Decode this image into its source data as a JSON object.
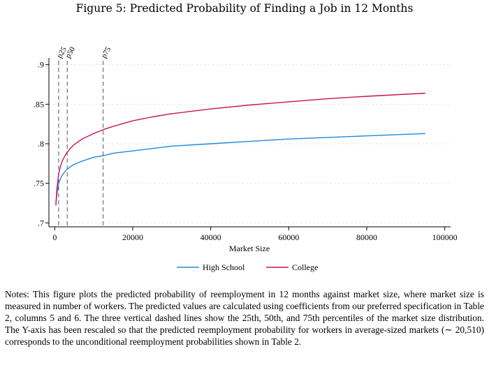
{
  "figure": {
    "title": "Figure 5: Predicted Probability of Finding a Job in 12 Months"
  },
  "chart_data": {
    "type": "line",
    "title": "Figure 5: Predicted Probability of Finding a Job in 12 Months",
    "xlabel": "Market Size",
    "ylabel": "",
    "xlim": [
      -1500,
      101500
    ],
    "ylim": [
      0.695,
      0.905
    ],
    "x_ticks": [
      0,
      20000,
      40000,
      60000,
      80000,
      100000
    ],
    "y_ticks": [
      0.7,
      0.75,
      0.8,
      0.85,
      0.9
    ],
    "y_tick_labels": [
      ".7",
      ".75",
      ".8",
      ".85",
      ".9"
    ],
    "grid": "horizontal dashed",
    "legend_position": "bottom",
    "colors": {
      "high_school": "#1f8ad6",
      "college": "#c8154f",
      "percentile_line": "#555555"
    },
    "x": [
      300,
      500,
      1000,
      1500,
      2000,
      3000,
      4000,
      5000,
      7000,
      10000,
      12500,
      15000,
      20000,
      25000,
      30000,
      40000,
      50000,
      60000,
      70000,
      80000,
      95000
    ],
    "series": [
      {
        "name": "High School",
        "values": [
          0.724,
          0.735,
          0.75,
          0.756,
          0.761,
          0.767,
          0.771,
          0.774,
          0.778,
          0.783,
          0.785,
          0.788,
          0.791,
          0.794,
          0.797,
          0.8,
          0.803,
          0.806,
          0.808,
          0.81,
          0.813
        ]
      },
      {
        "name": "College",
        "values": [
          0.722,
          0.741,
          0.762,
          0.772,
          0.779,
          0.788,
          0.794,
          0.799,
          0.806,
          0.813,
          0.818,
          0.822,
          0.829,
          0.834,
          0.838,
          0.844,
          0.849,
          0.853,
          0.857,
          0.86,
          0.864
        ]
      }
    ],
    "percentile_lines": [
      {
        "label": "p25",
        "x": 1000
      },
      {
        "label": "p50",
        "x": 3200
      },
      {
        "label": "p75",
        "x": 12400
      }
    ]
  },
  "notes": "Notes: This figure plots the predicted probability of reemployment in 12 months against market size, where market size is measured in number of workers. The predicted values are calculated using coefficients from our preferred specification in Table 2, columns 5 and 6. The three vertical dashed lines show the 25th, 50th, and 75th percentiles of the market size distribution. The Y-axis has been rescaled so that the predicted reemployment probability for workers in average-sized markets (∼ 20,510) corresponds to the unconditional reemployment probabilities shown in Table 2."
}
